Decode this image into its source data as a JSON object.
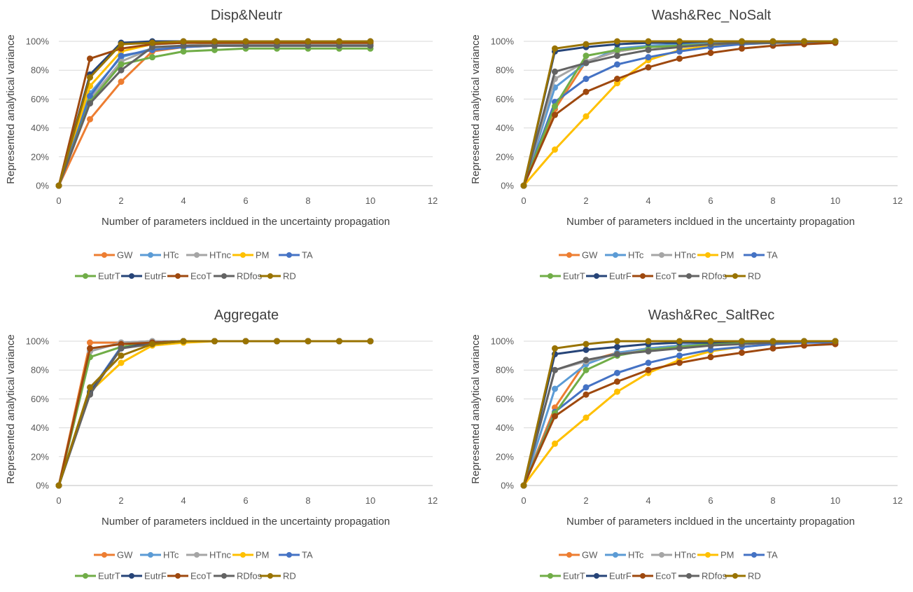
{
  "colors": {
    "GW": "#ED7D31",
    "HTc": "#5B9BD5",
    "HTnc": "#A5A5A5",
    "PM": "#FFC000",
    "TA": "#4472C4",
    "EutrT": "#70AD47",
    "EutrF": "#264478",
    "EcoT": "#9E480E",
    "RDfos": "#636363",
    "RD": "#997300"
  },
  "chart_data": [
    {
      "type": "line",
      "title": "Disp&Neutr",
      "xlabel": "Number of parameters incldued in the uncertainty propagation",
      "ylabel": "Represented analytical variance",
      "xlim": [
        0,
        12
      ],
      "ylim": [
        0,
        1
      ],
      "xticks": [
        "0",
        "2",
        "4",
        "6",
        "8",
        "10",
        "12"
      ],
      "yticks": [
        "0%",
        "20%",
        "40%",
        "60%",
        "80%",
        "100%"
      ],
      "grid": true,
      "legend_position": "bottom",
      "x": [
        0,
        1,
        2,
        3,
        4,
        5,
        6,
        7,
        8,
        9,
        10
      ],
      "series": [
        {
          "name": "GW",
          "values": [
            0,
            0.46,
            0.72,
            0.93,
            0.96,
            0.97,
            0.97,
            0.97,
            0.97,
            0.97,
            0.97
          ]
        },
        {
          "name": "HTc",
          "values": [
            0,
            0.64,
            0.89,
            0.95,
            0.97,
            0.98,
            0.98,
            0.98,
            0.98,
            0.98,
            0.98
          ]
        },
        {
          "name": "HTnc",
          "values": [
            0,
            0.6,
            0.86,
            0.95,
            0.97,
            0.98,
            0.98,
            0.98,
            0.98,
            0.98,
            0.98
          ]
        },
        {
          "name": "PM",
          "values": [
            0,
            0.69,
            0.93,
            0.98,
            0.99,
            0.99,
            0.99,
            0.99,
            0.99,
            0.99,
            0.99
          ]
        },
        {
          "name": "TA",
          "values": [
            0,
            0.62,
            0.9,
            0.94,
            0.96,
            0.97,
            0.97,
            0.97,
            0.97,
            0.97,
            0.97
          ]
        },
        {
          "name": "EutrT",
          "values": [
            0,
            0.58,
            0.84,
            0.89,
            0.93,
            0.94,
            0.95,
            0.95,
            0.95,
            0.95,
            0.95
          ]
        },
        {
          "name": "EutrF",
          "values": [
            0,
            0.77,
            0.99,
            1.0,
            1.0,
            1.0,
            1.0,
            1.0,
            1.0,
            1.0,
            1.0
          ]
        },
        {
          "name": "EcoT",
          "values": [
            0,
            0.88,
            0.95,
            0.98,
            0.99,
            0.99,
            0.99,
            0.99,
            0.99,
            0.99,
            0.99
          ]
        },
        {
          "name": "RDfos",
          "values": [
            0,
            0.57,
            0.8,
            0.96,
            0.97,
            0.97,
            0.97,
            0.97,
            0.97,
            0.97,
            0.97
          ]
        },
        {
          "name": "RD",
          "values": [
            0,
            0.75,
            0.98,
            0.99,
            1.0,
            1.0,
            1.0,
            1.0,
            1.0,
            1.0,
            1.0
          ]
        }
      ]
    },
    {
      "type": "line",
      "title": "Wash&Rec_NoSalt",
      "xlabel": "Number of parameters incldued in the uncertainty propagation",
      "ylabel": "Represented analytical variance",
      "xlim": [
        0,
        12
      ],
      "ylim": [
        0,
        1
      ],
      "xticks": [
        "0",
        "2",
        "4",
        "6",
        "8",
        "10",
        "12"
      ],
      "yticks": [
        "0%",
        "20%",
        "40%",
        "60%",
        "80%",
        "100%"
      ],
      "grid": true,
      "legend_position": "bottom",
      "x": [
        0,
        1,
        2,
        3,
        4,
        5,
        6,
        7,
        8,
        9,
        10
      ],
      "series": [
        {
          "name": "GW",
          "values": [
            0,
            0.53,
            0.86,
            0.93,
            0.96,
            0.97,
            0.98,
            0.99,
            0.99,
            1.0,
            1.0
          ]
        },
        {
          "name": "HTc",
          "values": [
            0,
            0.68,
            0.85,
            0.95,
            0.97,
            0.98,
            0.99,
            0.99,
            0.99,
            1.0,
            1.0
          ]
        },
        {
          "name": "HTnc",
          "values": [
            0,
            0.74,
            0.86,
            0.93,
            0.96,
            0.97,
            0.98,
            0.99,
            0.99,
            1.0,
            1.0
          ]
        },
        {
          "name": "PM",
          "values": [
            0,
            0.25,
            0.48,
            0.71,
            0.87,
            0.94,
            0.97,
            0.98,
            0.99,
            0.99,
            1.0
          ]
        },
        {
          "name": "TA",
          "values": [
            0,
            0.58,
            0.74,
            0.84,
            0.89,
            0.93,
            0.96,
            0.98,
            0.99,
            0.99,
            1.0
          ]
        },
        {
          "name": "EutrT",
          "values": [
            0,
            0.55,
            0.9,
            0.94,
            0.96,
            0.97,
            0.98,
            0.99,
            0.99,
            1.0,
            1.0
          ]
        },
        {
          "name": "EutrF",
          "values": [
            0,
            0.93,
            0.96,
            0.98,
            0.99,
            0.99,
            1.0,
            1.0,
            1.0,
            1.0,
            1.0
          ]
        },
        {
          "name": "EcoT",
          "values": [
            0,
            0.49,
            0.65,
            0.74,
            0.82,
            0.88,
            0.92,
            0.95,
            0.97,
            0.98,
            0.99
          ]
        },
        {
          "name": "RDfos",
          "values": [
            0,
            0.79,
            0.85,
            0.9,
            0.94,
            0.96,
            0.98,
            0.99,
            0.99,
            1.0,
            1.0
          ]
        },
        {
          "name": "RD",
          "values": [
            0,
            0.95,
            0.98,
            1.0,
            1.0,
            1.0,
            1.0,
            1.0,
            1.0,
            1.0,
            1.0
          ]
        }
      ]
    },
    {
      "type": "line",
      "title": "Aggregate",
      "xlabel": "Number of parameters incldued in the uncertainty propagation",
      "ylabel": "Represented analytical variance",
      "xlim": [
        0,
        12
      ],
      "ylim": [
        0,
        1
      ],
      "xticks": [
        "0",
        "2",
        "4",
        "6",
        "8",
        "10",
        "12"
      ],
      "yticks": [
        "0%",
        "20%",
        "40%",
        "60%",
        "80%",
        "100%"
      ],
      "grid": true,
      "legend_position": "bottom",
      "x": [
        0,
        1,
        2,
        3,
        4,
        5,
        6,
        7,
        8,
        9,
        10
      ],
      "series": [
        {
          "name": "GW",
          "values": [
            0,
            0.99,
            0.99,
            1.0,
            1.0,
            1.0,
            1.0,
            1.0,
            1.0,
            1.0,
            1.0
          ]
        },
        {
          "name": "HTc",
          "values": [
            0,
            0.93,
            0.99,
            1.0,
            1.0,
            1.0,
            1.0,
            1.0,
            1.0,
            1.0,
            1.0
          ]
        },
        {
          "name": "HTnc",
          "values": [
            0,
            0.93,
            0.99,
            1.0,
            1.0,
            1.0,
            1.0,
            1.0,
            1.0,
            1.0,
            1.0
          ]
        },
        {
          "name": "PM",
          "values": [
            0,
            0.65,
            0.85,
            0.97,
            0.99,
            1.0,
            1.0,
            1.0,
            1.0,
            1.0,
            1.0
          ]
        },
        {
          "name": "TA",
          "values": [
            0,
            0.65,
            0.96,
            0.99,
            1.0,
            1.0,
            1.0,
            1.0,
            1.0,
            1.0,
            1.0
          ]
        },
        {
          "name": "EutrT",
          "values": [
            0,
            0.89,
            0.96,
            0.99,
            1.0,
            1.0,
            1.0,
            1.0,
            1.0,
            1.0,
            1.0
          ]
        },
        {
          "name": "EutrF",
          "values": [
            0,
            0.64,
            0.95,
            0.99,
            1.0,
            1.0,
            1.0,
            1.0,
            1.0,
            1.0,
            1.0
          ]
        },
        {
          "name": "EcoT",
          "values": [
            0,
            0.95,
            0.98,
            0.99,
            1.0,
            1.0,
            1.0,
            1.0,
            1.0,
            1.0,
            1.0
          ]
        },
        {
          "name": "RDfos",
          "values": [
            0,
            0.63,
            0.95,
            0.98,
            1.0,
            1.0,
            1.0,
            1.0,
            1.0,
            1.0,
            1.0
          ]
        },
        {
          "name": "RD",
          "values": [
            0,
            0.68,
            0.9,
            0.98,
            1.0,
            1.0,
            1.0,
            1.0,
            1.0,
            1.0,
            1.0
          ]
        }
      ]
    },
    {
      "type": "line",
      "title": "Wash&Rec_SaltRec",
      "xlabel": "Number of parameters incldued in the uncertainty propagation",
      "ylabel": "Represented analytical variance",
      "xlim": [
        0,
        12
      ],
      "ylim": [
        0,
        1
      ],
      "xticks": [
        "0",
        "2",
        "4",
        "6",
        "8",
        "10",
        "12"
      ],
      "yticks": [
        "0%",
        "20%",
        "40%",
        "60%",
        "80%",
        "100%"
      ],
      "grid": true,
      "legend_position": "bottom",
      "x": [
        0,
        1,
        2,
        3,
        4,
        5,
        6,
        7,
        8,
        9,
        10
      ],
      "series": [
        {
          "name": "GW",
          "values": [
            0,
            0.54,
            0.86,
            0.92,
            0.95,
            0.97,
            0.98,
            0.99,
            0.99,
            1.0,
            1.0
          ]
        },
        {
          "name": "HTc",
          "values": [
            0,
            0.67,
            0.84,
            0.92,
            0.95,
            0.97,
            0.98,
            0.99,
            0.99,
            1.0,
            1.0
          ]
        },
        {
          "name": "HTnc",
          "values": [
            0,
            0.8,
            0.86,
            0.91,
            0.94,
            0.96,
            0.98,
            0.99,
            0.99,
            1.0,
            1.0
          ]
        },
        {
          "name": "PM",
          "values": [
            0,
            0.29,
            0.47,
            0.65,
            0.78,
            0.87,
            0.93,
            0.96,
            0.98,
            0.99,
            1.0
          ]
        },
        {
          "name": "TA",
          "values": [
            0,
            0.51,
            0.68,
            0.78,
            0.85,
            0.9,
            0.94,
            0.96,
            0.98,
            0.99,
            0.99
          ]
        },
        {
          "name": "EutrT",
          "values": [
            0,
            0.5,
            0.8,
            0.9,
            0.94,
            0.96,
            0.98,
            0.99,
            0.99,
            1.0,
            1.0
          ]
        },
        {
          "name": "EutrF",
          "values": [
            0,
            0.91,
            0.94,
            0.96,
            0.98,
            0.99,
            0.99,
            1.0,
            1.0,
            1.0,
            1.0
          ]
        },
        {
          "name": "EcoT",
          "values": [
            0,
            0.48,
            0.63,
            0.72,
            0.8,
            0.85,
            0.89,
            0.92,
            0.95,
            0.97,
            0.98
          ]
        },
        {
          "name": "RDfos",
          "values": [
            0,
            0.8,
            0.87,
            0.91,
            0.93,
            0.95,
            0.97,
            0.98,
            0.99,
            1.0,
            1.0
          ]
        },
        {
          "name": "RD",
          "values": [
            0,
            0.95,
            0.98,
            1.0,
            1.0,
            1.0,
            1.0,
            1.0,
            1.0,
            1.0,
            1.0
          ]
        }
      ]
    }
  ]
}
